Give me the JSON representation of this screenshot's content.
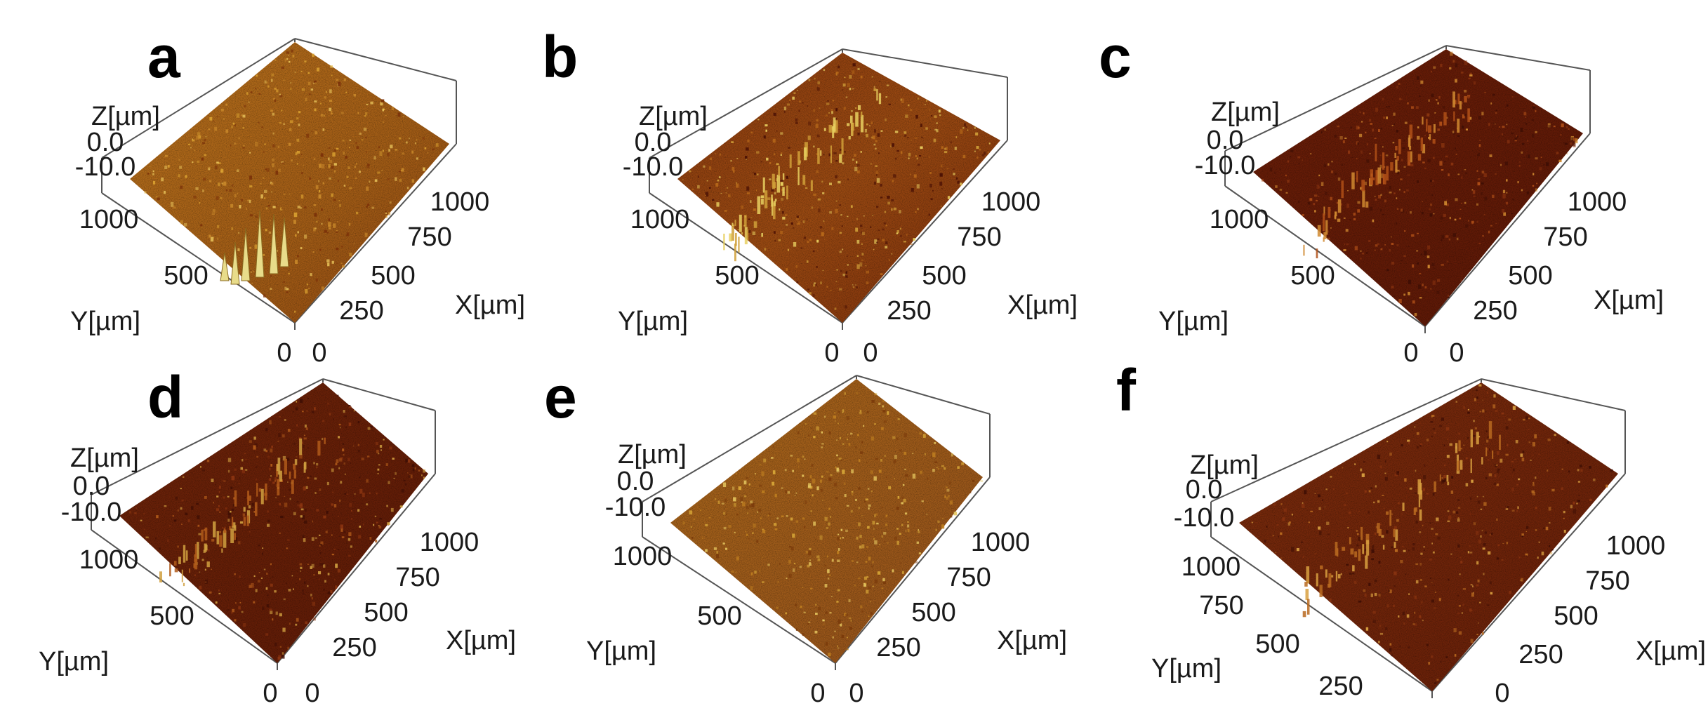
{
  "panels": [
    {
      "letter": "a",
      "z_title": "Z[µm]",
      "z_ticks": [
        "0.0",
        "-10.0"
      ],
      "y_title": "Y[µm]",
      "y_ticks": [
        "1000",
        "500",
        "0"
      ],
      "x_title": "X[µm]",
      "x_ticks": [
        "1000",
        "750",
        "500",
        "250",
        "0"
      ]
    },
    {
      "letter": "b",
      "z_title": "Z[µm]",
      "z_ticks": [
        "0.0",
        "-10.0"
      ],
      "y_title": "Y[µm]",
      "y_ticks": [
        "1000",
        "500",
        "0"
      ],
      "x_title": "X[µm]",
      "x_ticks": [
        "1000",
        "750",
        "500",
        "250",
        "0"
      ]
    },
    {
      "letter": "c",
      "z_title": "Z[µm]",
      "z_ticks": [
        "0.0",
        "-10.0"
      ],
      "y_title": "Y[µm]",
      "y_ticks": [
        "1000",
        "500",
        "0"
      ],
      "x_title": "X[µm]",
      "x_ticks": [
        "1000",
        "750",
        "500",
        "250",
        "0"
      ]
    },
    {
      "letter": "d",
      "z_title": "Z[µm]",
      "z_ticks": [
        "0.0",
        "-10.0"
      ],
      "y_title": "Y[µm]",
      "y_ticks": [
        "1000",
        "500",
        "0"
      ],
      "x_title": "X[µm]",
      "x_ticks": [
        "1000",
        "750",
        "500",
        "250",
        "0"
      ]
    },
    {
      "letter": "e",
      "z_title": "Z[µm]",
      "z_ticks": [
        "0.0",
        "-10.0"
      ],
      "y_title": "Y[µm]",
      "y_ticks": [
        "1000",
        "500",
        "0"
      ],
      "x_title": "X[µm]",
      "x_ticks": [
        "1000",
        "750",
        "500",
        "250",
        "0"
      ]
    },
    {
      "letter": "f",
      "z_title": "Z[µm]",
      "z_ticks": [
        "0.0",
        "-10.0"
      ],
      "y_title": "Y[µm]",
      "y_ticks": [
        "1000",
        "750",
        "500",
        "250",
        "0"
      ],
      "x_title": "X[µm]",
      "x_ticks": [
        "1000",
        "750",
        "500",
        "250",
        "0"
      ]
    }
  ],
  "colors": {
    "surface_light": "#b8741a",
    "surface_mid": "#9a5514",
    "surface_dark": "#6e2208",
    "surface_darker": "#5a1a06",
    "highlight": "#e8d060",
    "frame": "#555555"
  }
}
